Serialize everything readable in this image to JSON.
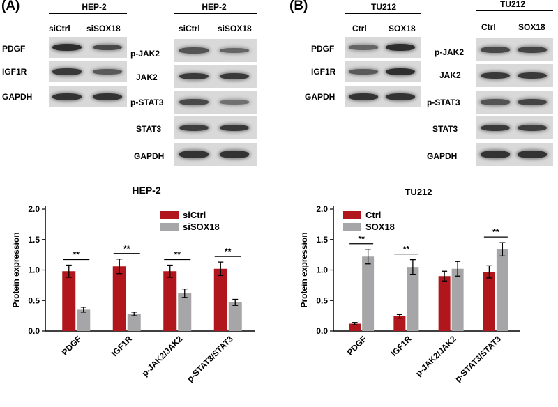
{
  "panels": {
    "A": {
      "label": "(A)",
      "blot_left": {
        "title": "HEP-2",
        "columns": [
          "siCtrl",
          "siSOX18"
        ],
        "rows": [
          {
            "name": "PDGF",
            "bands": [
              0.95,
              0.7
            ]
          },
          {
            "name": "IGF1R",
            "bands": [
              0.85,
              0.55
            ]
          },
          {
            "name": "GAPDH",
            "bands": [
              0.9,
              0.9
            ]
          }
        ]
      },
      "blot_right": {
        "title": "HEP-2",
        "columns": [
          "siCtrl",
          "siSOX18"
        ],
        "rows": [
          {
            "name": "p-JAK2",
            "bands": [
              0.6,
              0.45
            ]
          },
          {
            "name": "JAK2",
            "bands": [
              0.85,
              0.85
            ]
          },
          {
            "name": "p-STAT3",
            "bands": [
              0.7,
              0.35
            ]
          },
          {
            "name": "STAT3",
            "bands": [
              0.8,
              0.85
            ]
          },
          {
            "name": "GAPDH",
            "bands": [
              0.9,
              0.9
            ]
          }
        ]
      }
    },
    "B": {
      "label": "(B)",
      "blot_left": {
        "title": "TU212",
        "columns": [
          "Ctrl",
          "SOX18"
        ],
        "rows": [
          {
            "name": "PDGF",
            "bands": [
              0.45,
              0.95
            ]
          },
          {
            "name": "IGF1R",
            "bands": [
              0.55,
              0.95
            ]
          },
          {
            "name": "GAPDH",
            "bands": [
              0.9,
              0.9
            ]
          }
        ]
      },
      "blot_right": {
        "title": "TU212",
        "columns": [
          "Ctrl",
          "SOX18"
        ],
        "rows": [
          {
            "name": "p-JAK2",
            "bands": [
              0.7,
              0.75
            ]
          },
          {
            "name": "JAK2",
            "bands": [
              0.85,
              0.85
            ]
          },
          {
            "name": "p-STAT3",
            "bands": [
              0.6,
              0.75
            ]
          },
          {
            "name": "STAT3",
            "bands": [
              0.85,
              0.8
            ]
          },
          {
            "name": "GAPDH",
            "bands": [
              0.9,
              0.9
            ]
          }
        ]
      }
    }
  },
  "chart_data": [
    {
      "type": "bar",
      "title": "HEP-2",
      "ylabel": "Protein expression",
      "xlabel": "",
      "ylim": [
        0,
        2.0
      ],
      "yticks": [
        0.0,
        0.5,
        1.0,
        1.5,
        2.0
      ],
      "legend": "top-right",
      "categories": [
        "PDGF",
        "IGF1R",
        "p-JAK2/JAK2",
        "p-STAT3/STAT3"
      ],
      "series": [
        {
          "name": "siCtrl",
          "color": "#b0161b",
          "values": [
            0.98,
            1.06,
            0.98,
            1.02
          ],
          "errors": [
            0.1,
            0.12,
            0.1,
            0.11
          ]
        },
        {
          "name": "siSOX18",
          "color": "#a6a6a8",
          "values": [
            0.35,
            0.28,
            0.62,
            0.47
          ],
          "errors": [
            0.04,
            0.03,
            0.07,
            0.05
          ]
        }
      ],
      "significance": [
        "**",
        "**",
        "**",
        "**"
      ]
    },
    {
      "type": "bar",
      "title": "TU212",
      "ylabel": "Protein expression",
      "xlabel": "",
      "ylim": [
        0,
        2.0
      ],
      "yticks": [
        0.0,
        0.5,
        1.0,
        1.5,
        2.0
      ],
      "legend": "top-left",
      "categories": [
        "PDGF",
        "IGF1R",
        "p-JAK2/JAK2",
        "p-STAT3/STAT3"
      ],
      "series": [
        {
          "name": "Ctrl",
          "color": "#b0161b",
          "values": [
            0.12,
            0.24,
            0.9,
            0.97
          ],
          "errors": [
            0.02,
            0.03,
            0.08,
            0.1
          ]
        },
        {
          "name": "SOX18",
          "color": "#a6a6a8",
          "values": [
            1.22,
            1.05,
            1.02,
            1.34
          ],
          "errors": [
            0.12,
            0.12,
            0.12,
            0.11
          ]
        }
      ],
      "significance": [
        "**",
        "**",
        "",
        "**"
      ]
    }
  ]
}
